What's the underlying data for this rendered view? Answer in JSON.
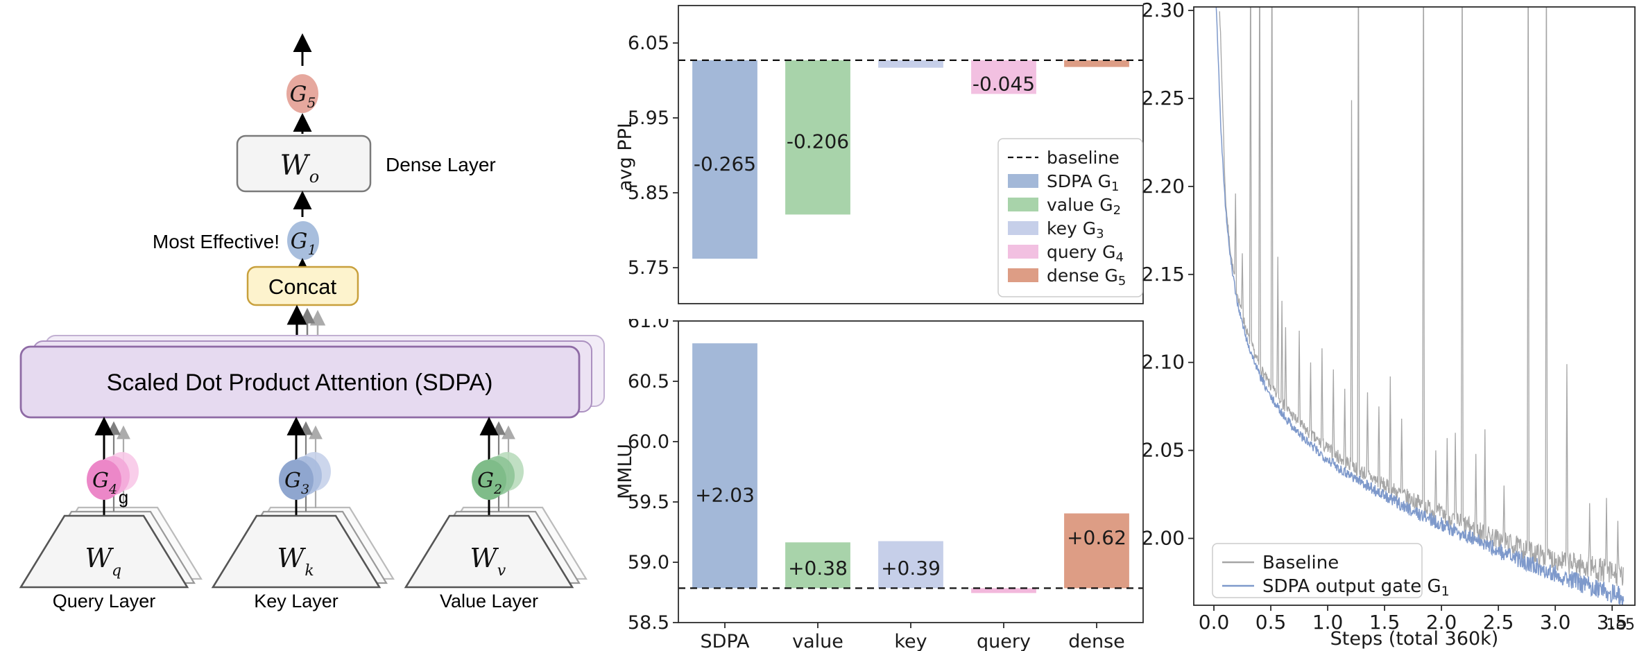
{
  "diagram": {
    "dense_layer_label": "Dense Layer",
    "most_effective_label": "Most Effective!",
    "concat_label": "Concat",
    "sdpa_label": "Scaled Dot Product Attention (SDPA)",
    "stray_g": "g",
    "gates": {
      "g5": {
        "main": "G",
        "sub": "5"
      },
      "g1": {
        "main": "G",
        "sub": "1"
      },
      "g4": {
        "main": "G",
        "sub": "4"
      },
      "g3": {
        "main": "G",
        "sub": "3"
      },
      "g2": {
        "main": "G",
        "sub": "2"
      }
    },
    "weights": {
      "wo": {
        "main": "W",
        "sub": "o"
      },
      "wq": {
        "main": "W",
        "sub": "q"
      },
      "wk": {
        "main": "W",
        "sub": "k"
      },
      "wv": {
        "main": "W",
        "sub": "v"
      }
    },
    "columns": {
      "query": "Query Layer",
      "key": "Key Layer",
      "value": "Value Layer"
    },
    "colors": {
      "g5_fill": "#e6a89e",
      "g1_fill": "#a8bedd",
      "g4_front": "#ec87c8",
      "g4_mid": "#f3a9d9",
      "g4_back": "#f8c9e8",
      "g3_front": "#8fa6cf",
      "g3_mid": "#a9bbde",
      "g3_back": "#c6d2ea",
      "g2_front": "#7fbc89",
      "g2_mid": "#8ec497",
      "g2_back": "#b9dcbd",
      "sdpa_fill": "#e6daf0",
      "sdpa_stroke": "#8e6aa5",
      "concat_fill": "#fdf3cd",
      "concat_stroke": "#c8a03c",
      "wo_fill": "#f4f4f4",
      "trap_fill": "#f5f5f5"
    }
  },
  "chart_data": [
    {
      "id": "ppl_bar",
      "type": "bar",
      "ylabel": "avg PPL",
      "ylim": [
        5.702,
        6.1
      ],
      "yticks": [
        {
          "v": 6.05,
          "t": "6.05"
        },
        {
          "v": 5.95,
          "t": "5.95"
        },
        {
          "v": 5.85,
          "t": "5.85"
        },
        {
          "v": 5.75,
          "t": "5.75"
        }
      ],
      "baseline": 6.027,
      "categories": [
        "SDPA",
        "value",
        "key",
        "query",
        "dense"
      ],
      "show_xticklabels": false,
      "bars": [
        {
          "name": "SDPA G1",
          "delta": -0.265,
          "end": 5.762,
          "color": "#a3b8d8",
          "label": {
            "text": "-0.265",
            "y": 5.889
          }
        },
        {
          "name": "value G2",
          "delta": -0.206,
          "end": 5.821,
          "color": "#a8d3aa",
          "label": {
            "text": "-0.206",
            "y": 5.919
          }
        },
        {
          "name": "key G3",
          "delta": -0.01,
          "end": 6.017,
          "color": "#c6cfe9",
          "label": null
        },
        {
          "name": "query G4",
          "delta": -0.045,
          "end": 5.982,
          "color": "#f2c0e1",
          "label": {
            "text": "-0.045",
            "y": 5.996
          }
        },
        {
          "name": "dense G5",
          "delta": -0.009,
          "end": 6.018,
          "color": "#dd9d85",
          "label": null
        }
      ],
      "legend": [
        {
          "swatch": "dash",
          "color": "#111111",
          "main": "baseline",
          "sub": ""
        },
        {
          "swatch": "patch",
          "color": "#a3b8d8",
          "main": "SDPA G",
          "sub": "1"
        },
        {
          "swatch": "patch",
          "color": "#a8d3aa",
          "main": "value G",
          "sub": "2"
        },
        {
          "swatch": "patch",
          "color": "#c6cfe9",
          "main": "key G",
          "sub": "3"
        },
        {
          "swatch": "patch",
          "color": "#f2c0e1",
          "main": "query G",
          "sub": "4"
        },
        {
          "swatch": "patch",
          "color": "#dd9d85",
          "main": "dense G",
          "sub": "5"
        }
      ]
    },
    {
      "id": "mmlu_bar",
      "type": "bar",
      "ylabel": "MMLU",
      "ylim": [
        58.5,
        61.0
      ],
      "yticks": [
        {
          "v": 61.0,
          "t": "61.0"
        },
        {
          "v": 60.5,
          "t": "60.5"
        },
        {
          "v": 60.0,
          "t": "60.0"
        },
        {
          "v": 59.5,
          "t": "59.5"
        },
        {
          "v": 59.0,
          "t": "59.0"
        },
        {
          "v": 58.5,
          "t": "58.5"
        }
      ],
      "baseline": 58.785,
      "categories": [
        "SDPA",
        "value",
        "key",
        "query",
        "dense"
      ],
      "show_xticklabels": true,
      "bars": [
        {
          "name": "SDPA G1",
          "delta": 2.03,
          "end": 60.815,
          "color": "#a3b8d8",
          "label": {
            "text": "+2.03",
            "y": 59.56
          }
        },
        {
          "name": "value G2",
          "delta": 0.38,
          "end": 59.165,
          "color": "#a8d3aa",
          "label": {
            "text": "+0.38",
            "y": 58.954
          }
        },
        {
          "name": "key G3",
          "delta": 0.39,
          "end": 59.175,
          "color": "#c6cfe9",
          "label": {
            "text": "+0.39",
            "y": 58.954
          }
        },
        {
          "name": "query G4",
          "delta": -0.04,
          "end": 58.745,
          "color": "#f2b8dc",
          "label": null
        },
        {
          "name": "dense G5",
          "delta": 0.62,
          "end": 59.405,
          "color": "#dd9d85",
          "label": {
            "text": "+0.62",
            "y": 59.207
          }
        }
      ],
      "legend": null
    },
    {
      "id": "loss_line",
      "type": "line",
      "xlabel": "Steps (total 360k)",
      "offset_label": "1e5",
      "xlim": [
        -0.177,
        3.7
      ],
      "ylim": [
        1.962,
        2.302
      ],
      "xticks": [
        {
          "v": 0.0,
          "t": "0.0"
        },
        {
          "v": 0.5,
          "t": "0.5"
        },
        {
          "v": 1.0,
          "t": "1.0"
        },
        {
          "v": 1.5,
          "t": "1.5"
        },
        {
          "v": 2.0,
          "t": "2.0"
        },
        {
          "v": 2.5,
          "t": "2.5"
        },
        {
          "v": 3.0,
          "t": "3.0"
        },
        {
          "v": 3.5,
          "t": "3.5"
        }
      ],
      "yticks": [
        {
          "v": 2.3,
          "t": "2.30"
        },
        {
          "v": 2.25,
          "t": "2.25"
        },
        {
          "v": 2.2,
          "t": "2.20"
        },
        {
          "v": 2.15,
          "t": "2.15"
        },
        {
          "v": 2.1,
          "t": "2.10"
        },
        {
          "v": 2.05,
          "t": "2.05"
        },
        {
          "v": 2.0,
          "t": "2.00"
        }
      ],
      "noise_seed": 7,
      "series": [
        {
          "name": "Baseline",
          "main": "Baseline",
          "sub": "",
          "color": "#a6a6a6",
          "width": 1.3,
          "noise": 0.0045,
          "anchors": [
            [
              0.05,
              2.302
            ],
            [
              0.08,
              2.24
            ],
            [
              0.1,
              2.195
            ],
            [
              0.13,
              2.172
            ],
            [
              0.16,
              2.156
            ],
            [
              0.2,
              2.141
            ],
            [
              0.25,
              2.127
            ],
            [
              0.3,
              2.115
            ],
            [
              0.4,
              2.098
            ],
            [
              0.5,
              2.086
            ],
            [
              0.6,
              2.077
            ],
            [
              0.7,
              2.069
            ],
            [
              0.8,
              2.062
            ],
            [
              0.9,
              2.056
            ],
            [
              1.0,
              2.051
            ],
            [
              1.1,
              2.046
            ],
            [
              1.2,
              2.042
            ],
            [
              1.35,
              2.036
            ],
            [
              1.5,
              2.03
            ],
            [
              1.65,
              2.025
            ],
            [
              1.8,
              2.02
            ],
            [
              2.0,
              2.014
            ],
            [
              2.2,
              2.008
            ],
            [
              2.4,
              2.002
            ],
            [
              2.6,
              1.997
            ],
            [
              2.8,
              1.992
            ],
            [
              3.0,
              1.988
            ],
            [
              3.2,
              1.985
            ],
            [
              3.4,
              1.982
            ],
            [
              3.6,
              1.978
            ]
          ],
          "spikes": [
            [
              0.19,
              2.196
            ],
            [
              0.25,
              2.162
            ],
            [
              0.32,
              2.35
            ],
            [
              0.4,
              2.35
            ],
            [
              0.51,
              2.35
            ],
            [
              0.56,
              2.16
            ],
            [
              0.6,
              2.135
            ],
            [
              0.63,
              2.12
            ],
            [
              0.75,
              2.118
            ],
            [
              0.85,
              2.1
            ],
            [
              0.95,
              2.108
            ],
            [
              1.05,
              2.096
            ],
            [
              1.15,
              2.085
            ],
            [
              1.21,
              2.249
            ],
            [
              1.27,
              2.35
            ],
            [
              1.35,
              2.083
            ],
            [
              1.45,
              2.075
            ],
            [
              1.55,
              2.092
            ],
            [
              1.65,
              2.068
            ],
            [
              1.84,
              2.35
            ],
            [
              1.95,
              2.05
            ],
            [
              2.05,
              2.057
            ],
            [
              2.12,
              2.06
            ],
            [
              2.18,
              2.35
            ],
            [
              2.3,
              2.048
            ],
            [
              2.38,
              2.062
            ],
            [
              2.55,
              2.03
            ],
            [
              2.76,
              2.35
            ],
            [
              2.92,
              2.35
            ],
            [
              3.1,
              2.099
            ],
            [
              3.3,
              2.02
            ],
            [
              3.45,
              2.023
            ],
            [
              3.55,
              2.01
            ]
          ]
        },
        {
          "name": "SDPA output gate G1",
          "main": "SDPA output gate G",
          "sub": "1",
          "color": "#7e99cb",
          "width": 1.5,
          "noise": 0.0035,
          "anchors": [
            [
              0.02,
              2.302
            ],
            [
              0.04,
              2.27
            ],
            [
              0.06,
              2.235
            ],
            [
              0.08,
              2.212
            ],
            [
              0.1,
              2.19
            ],
            [
              0.13,
              2.168
            ],
            [
              0.16,
              2.152
            ],
            [
              0.2,
              2.136
            ],
            [
              0.25,
              2.122
            ],
            [
              0.3,
              2.11
            ],
            [
              0.4,
              2.093
            ],
            [
              0.5,
              2.08
            ],
            [
              0.6,
              2.071
            ],
            [
              0.7,
              2.063
            ],
            [
              0.8,
              2.056
            ],
            [
              0.9,
              2.05
            ],
            [
              1.0,
              2.045
            ],
            [
              1.1,
              2.04
            ],
            [
              1.2,
              2.036
            ],
            [
              1.35,
              2.03
            ],
            [
              1.5,
              2.024
            ],
            [
              1.65,
              2.019
            ],
            [
              1.8,
              2.014
            ],
            [
              2.0,
              2.008
            ],
            [
              2.2,
              2.002
            ],
            [
              2.4,
              1.996
            ],
            [
              2.6,
              1.99
            ],
            [
              2.8,
              1.985
            ],
            [
              3.0,
              1.98
            ],
            [
              3.2,
              1.975
            ],
            [
              3.4,
              1.971
            ],
            [
              3.6,
              1.967
            ]
          ],
          "spikes": []
        }
      ],
      "legend": [
        {
          "swatch": "line",
          "color": "#a6a6a6",
          "main": "Baseline",
          "sub": ""
        },
        {
          "swatch": "line",
          "color": "#7e99cb",
          "main": "SDPA output gate G",
          "sub": "1"
        }
      ]
    }
  ]
}
